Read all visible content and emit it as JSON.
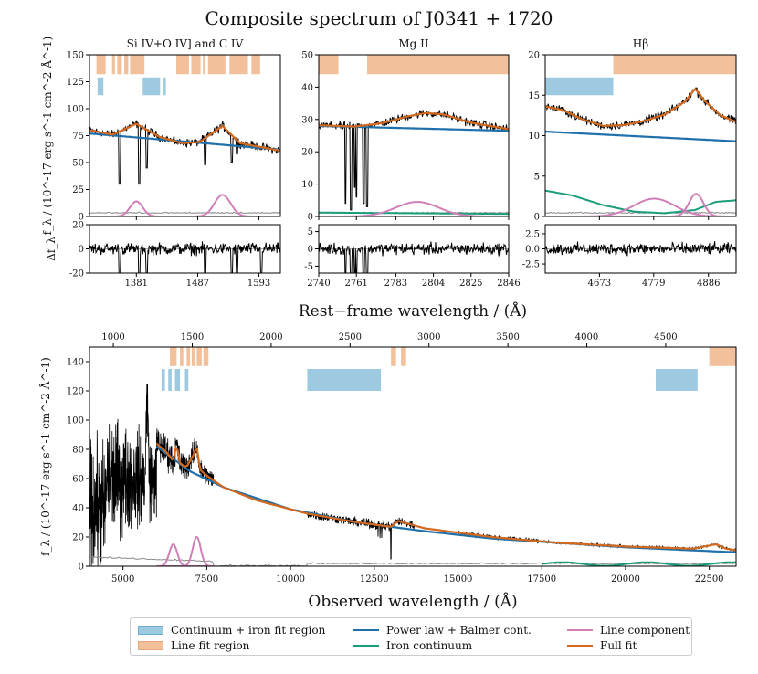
{
  "figure": {
    "title": "Composite spectrum of J0341 + 1720"
  },
  "colors": {
    "cont_region": "#9ecae1",
    "line_region": "#f2c19b",
    "power_law": "#1f6faa",
    "iron": "#1a9e7a",
    "line_comp": "#d07fb8",
    "full_fit": "#d2691e",
    "data": "#000000",
    "error": "#888888"
  },
  "legend": {
    "items": [
      {
        "key": "cont_region",
        "label": "Continuum + iron fit region",
        "kind": "box"
      },
      {
        "key": "line_region",
        "label": "Line fit region",
        "kind": "box"
      },
      {
        "key": "power_law",
        "label": "Power law + Balmer cont.",
        "kind": "line"
      },
      {
        "key": "iron",
        "label": "Iron continuum",
        "kind": "line"
      },
      {
        "key": "line_comp",
        "label": "Line component",
        "kind": "line"
      },
      {
        "key": "full_fit",
        "label": "Full fit",
        "kind": "line"
      }
    ]
  },
  "chart_data": [
    {
      "id": "siiv",
      "type": "line",
      "title": "Si IV+O IV] and C IV",
      "xlim": [
        1300,
        1630
      ],
      "ylim": [
        0,
        150
      ],
      "xticks": [
        1381,
        1487,
        1593
      ],
      "yticks": [
        0,
        25,
        50,
        75,
        100,
        125,
        150
      ],
      "ylabel": "f_λ / (10^-17 erg s^-1 cm^-2 Å^-1)",
      "line_regions": [
        [
          1312,
          1328
        ],
        [
          1339,
          1344
        ],
        [
          1348,
          1356
        ],
        [
          1360,
          1367
        ],
        [
          1370,
          1395
        ],
        [
          1450,
          1472
        ],
        [
          1476,
          1492
        ],
        [
          1496,
          1500
        ],
        [
          1505,
          1535
        ],
        [
          1542,
          1574
        ],
        [
          1580,
          1595
        ]
      ],
      "cont_regions": [
        [
          1314,
          1324
        ],
        [
          1392,
          1422
        ],
        [
          1428,
          1432
        ]
      ],
      "power_law": {
        "x": [
          1300,
          1630
        ],
        "y": [
          77,
          62
        ]
      },
      "full_fit": {
        "x": [
          1300,
          1340,
          1381,
          1420,
          1460,
          1490,
          1530,
          1560,
          1600,
          1630
        ],
        "y": [
          80,
          76,
          86,
          74,
          68,
          69,
          84,
          68,
          64,
          61
        ]
      },
      "line_components": [
        {
          "center": 1381,
          "amp": 14,
          "sigma": 11
        },
        {
          "center": 1530,
          "amp": 20,
          "sigma": 14
        }
      ],
      "absorptions": [
        [
          1352,
          30
        ],
        [
          1386,
          30
        ],
        [
          1399,
          45
        ],
        [
          1500,
          48
        ],
        [
          1546,
          50
        ],
        [
          1555,
          58
        ],
        [
          1597,
          62
        ]
      ],
      "residual": {
        "ylim": [
          -20,
          20
        ],
        "yticks": [
          -20,
          0,
          20
        ],
        "ylabel": "Δf_λ"
      }
    },
    {
      "id": "mgii",
      "type": "line",
      "title": "Mg II",
      "xlim": [
        2740,
        2846
      ],
      "ylim": [
        0,
        50
      ],
      "xticks": [
        2740,
        2761,
        2783,
        2804,
        2825,
        2846
      ],
      "yticks": [
        0,
        10,
        20,
        30,
        40,
        50
      ],
      "line_regions": [
        [
          2740,
          2751
        ],
        [
          2767,
          2846
        ]
      ],
      "cont_regions": [],
      "power_law": {
        "x": [
          2740,
          2846
        ],
        "y": [
          28,
          26.5
        ]
      },
      "full_fit": {
        "x": [
          2740,
          2760,
          2775,
          2790,
          2800,
          2810,
          2825,
          2846
        ],
        "y": [
          28.2,
          27.8,
          28.8,
          31,
          32,
          31.5,
          29,
          27
        ]
      },
      "line_components": [
        {
          "center": 2795,
          "amp": 4.5,
          "sigma": 12
        }
      ],
      "iron": {
        "x": [
          2740,
          2846
        ],
        "y": [
          1.2,
          0.8
        ]
      },
      "absorptions": [
        [
          2755,
          4
        ],
        [
          2758,
          2
        ],
        [
          2760,
          9
        ],
        [
          2761,
          6
        ],
        [
          2765,
          4
        ],
        [
          2767,
          3
        ]
      ],
      "residual": {
        "ylim": [
          -7,
          7
        ],
        "yticks": [
          -5,
          0,
          5
        ]
      }
    },
    {
      "id": "hbeta",
      "type": "line",
      "title": "Hβ",
      "xlim": [
        4567,
        4940
      ],
      "ylim": [
        0,
        20
      ],
      "xticks": [
        4673,
        4779,
        4886
      ],
      "yticks": [
        0,
        5,
        10,
        15,
        20
      ],
      "line_regions": [
        [
          4700,
          4940
        ]
      ],
      "cont_regions": [
        [
          4567,
          4700
        ]
      ],
      "power_law": {
        "x": [
          4567,
          4940
        ],
        "y": [
          10.5,
          9.3
        ]
      },
      "full_fit": {
        "x": [
          4567,
          4600,
          4640,
          4680,
          4720,
          4760,
          4800,
          4840,
          4860,
          4880,
          4910,
          4940
        ],
        "y": [
          13.6,
          13.2,
          12,
          11.2,
          11.3,
          11.8,
          12.6,
          14.2,
          15.8,
          14.2,
          12.5,
          11.7
        ]
      },
      "line_components": [
        {
          "center": 4780,
          "amp": 2.2,
          "sigma": 40
        },
        {
          "center": 4862,
          "amp": 2.8,
          "sigma": 14
        }
      ],
      "iron": {
        "x": [
          4567,
          4620,
          4680,
          4740,
          4800,
          4860,
          4900,
          4940
        ],
        "y": [
          3.2,
          2.6,
          1.4,
          0.6,
          0.4,
          0.8,
          1.8,
          2.0
        ]
      },
      "absorptions": [],
      "residual": {
        "ylim": [
          -4,
          4
        ],
        "yticks": [
          2.5,
          0.0,
          -2.5
        ]
      }
    },
    {
      "id": "observed",
      "type": "line",
      "xlabel": "Observed wavelength / (Å)",
      "ylabel": "f_λ / (10^-17 erg s^-1 cm^-2 Å^-1)",
      "xlim": [
        4000,
        23300
      ],
      "ylim": [
        0,
        150
      ],
      "xticks": [
        5000,
        7500,
        10000,
        12500,
        15000,
        17500,
        20000,
        22500
      ],
      "yticks": [
        0,
        20,
        40,
        60,
        80,
        100,
        120,
        140
      ],
      "top_axis": {
        "label": "Rest−frame wavelength / (Å)",
        "ticks": [
          1000,
          1500,
          2000,
          2500,
          3000,
          3500,
          4000,
          4500
        ]
      },
      "rest_scale": {
        "z": 3.711
      },
      "line_regions": [
        [
          6400,
          6600
        ],
        [
          6700,
          6800
        ],
        [
          6900,
          7000
        ],
        [
          7050,
          7150
        ],
        [
          7200,
          7350
        ],
        [
          7400,
          7550
        ],
        [
          13000,
          13150
        ],
        [
          13300,
          13450
        ],
        [
          22500,
          23300
        ]
      ],
      "cont_regions": [
        [
          6150,
          6250
        ],
        [
          6350,
          6450
        ],
        [
          6550,
          6700
        ],
        [
          6850,
          6950
        ],
        [
          10500,
          12700
        ],
        [
          20900,
          22150
        ]
      ],
      "segments": [
        [
          4000,
          7700
        ],
        [
          10500,
          13700
        ],
        [
          15000,
          17400
        ],
        [
          17500,
          23300
        ]
      ],
      "full_fit": {
        "x": [
          6000,
          6300,
          6500,
          6600,
          6700,
          6900,
          7100,
          7200,
          7300,
          7500,
          8000,
          9000,
          10500,
          12000,
          13000,
          13200,
          14000,
          16000,
          18000,
          20000,
          22000,
          22700,
          23000,
          23300
        ],
        "y": [
          84,
          78,
          72,
          84,
          70,
          68,
          76,
          82,
          66,
          62,
          54,
          45,
          36,
          30,
          27,
          31,
          26,
          20,
          16,
          13.5,
          12,
          15,
          12,
          11
        ]
      },
      "power_law": {
        "x": [
          6000,
          7000,
          8000,
          10000,
          12000,
          14000,
          16000,
          18000,
          20000,
          23300
        ],
        "y": [
          82,
          65,
          54,
          39,
          30,
          24,
          19,
          16,
          13,
          9.5
        ]
      },
      "line_components": [
        {
          "center": 6500,
          "amp": 15,
          "sigma": 120
        },
        {
          "center": 7200,
          "amp": 20,
          "sigma": 120
        }
      ]
    }
  ]
}
